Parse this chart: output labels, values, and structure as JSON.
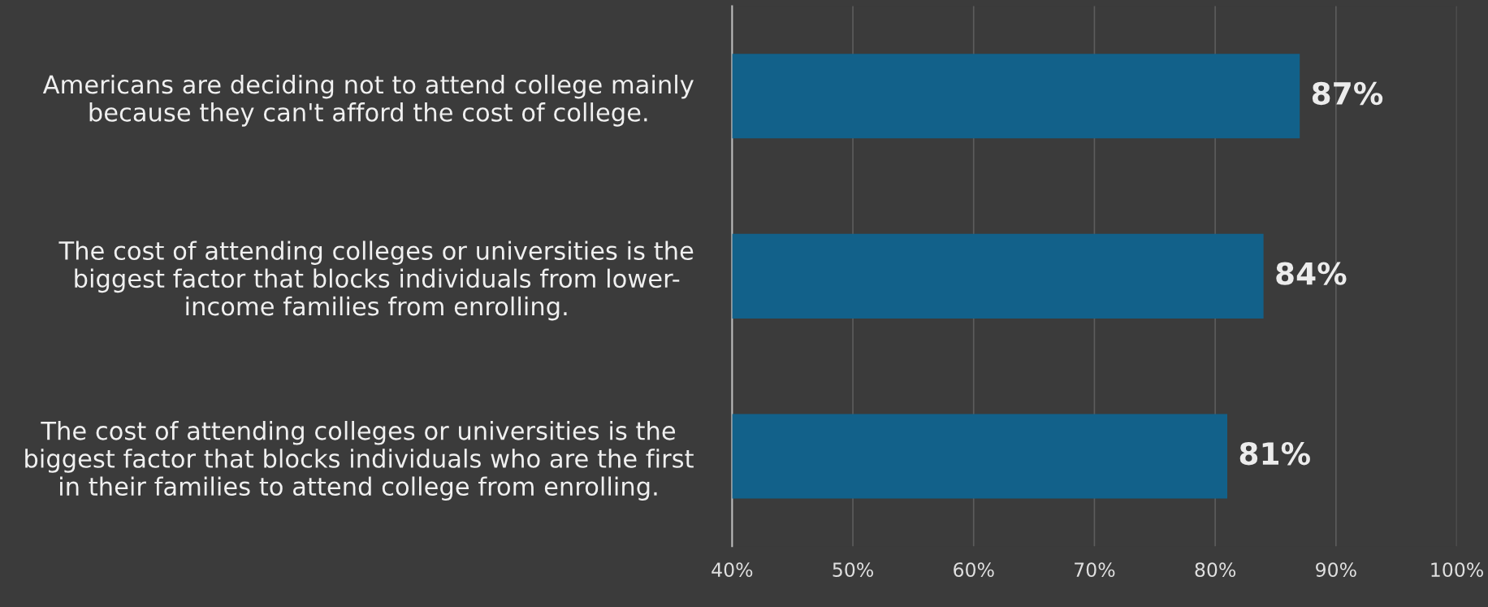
{
  "chart_data": {
    "type": "bar",
    "orientation": "horizontal",
    "categories": [
      "Americans are deciding not to attend college mainly\nbecause they can't afford the cost of college.",
      "The cost of attending colleges or universities is the\nbiggest factor that blocks individuals from lower-\nincome families from enrolling.",
      "The cost of attending colleges or universities is the\nbiggest factor that blocks individuals who are the first\nin their families to attend college from enrolling."
    ],
    "values": [
      87,
      84,
      81
    ],
    "value_labels": [
      "87%",
      "84%",
      "81%"
    ],
    "color": "#12618a",
    "xlim": [
      40,
      100
    ],
    "xticks": [
      {
        "value": 40,
        "label": "40%"
      },
      {
        "value": 50,
        "label": "50%"
      },
      {
        "value": 60,
        "label": "60%"
      },
      {
        "value": 70,
        "label": "70%"
      },
      {
        "value": 80,
        "label": "80%"
      },
      {
        "value": 90,
        "label": "90%"
      },
      {
        "value": 100,
        "label": "100%"
      }
    ],
    "grid": "x",
    "legend": false
  }
}
